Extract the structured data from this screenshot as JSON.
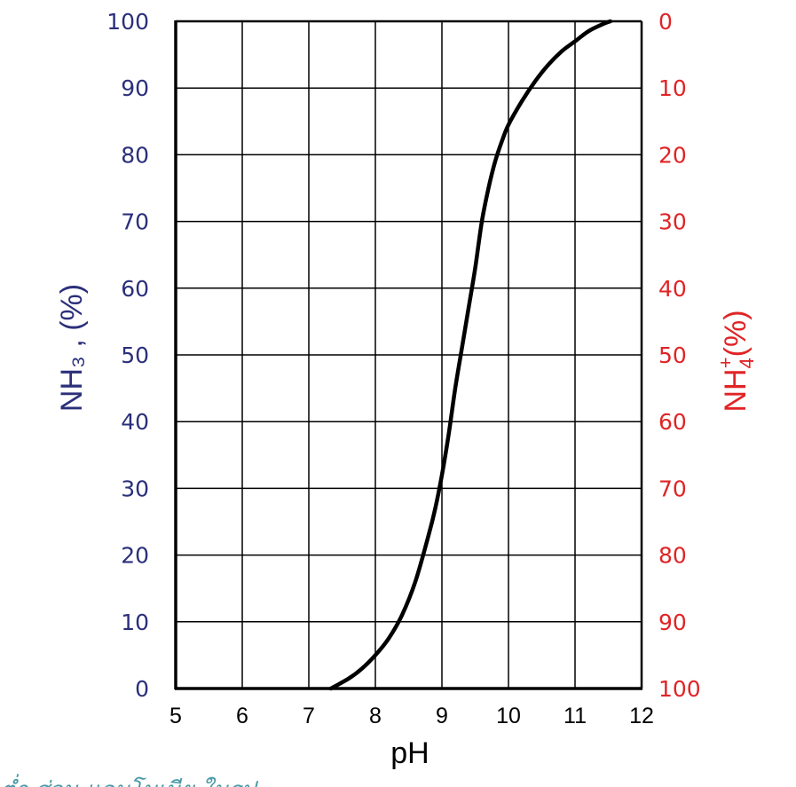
{
  "colors": {
    "left_axis": "#2b2f7a",
    "right_axis": "#e02426",
    "grid": "#000000",
    "curve": "#000000"
  },
  "chart_data": {
    "type": "line",
    "xlabel": "pH",
    "ylabel_left": "NH₃ , (%)",
    "ylabel_right": {
      "base": "NH",
      "subscript": "4",
      "superscript": "+",
      "suffix": "(%)"
    },
    "xlim": [
      5,
      12
    ],
    "ylim_left": [
      0,
      100
    ],
    "ylim_right": [
      100,
      0
    ],
    "x_ticks": [
      "5",
      "6",
      "7",
      "8",
      "9",
      "10",
      "11",
      "12"
    ],
    "left_ticks": [
      "0",
      "10",
      "20",
      "30",
      "40",
      "50",
      "60",
      "70",
      "80",
      "90",
      "100"
    ],
    "right_ticks": [
      "100",
      "90",
      "80",
      "70",
      "60",
      "50",
      "40",
      "30",
      "20",
      "10",
      "0"
    ],
    "grid": true,
    "series": [
      {
        "x": [
          7.33,
          7.6,
          7.8,
          8.0,
          8.2,
          8.4,
          8.6,
          8.8,
          8.9,
          9.0,
          9.1,
          9.2,
          9.3,
          9.4,
          9.5,
          9.6,
          9.7,
          9.8,
          9.9,
          10.0,
          10.2,
          10.4,
          10.6,
          10.8,
          11.0,
          11.2,
          11.4,
          11.53
        ],
        "y": [
          0,
          1.5,
          3,
          5,
          7.5,
          11,
          16,
          23,
          27,
          32,
          38,
          45,
          51,
          57,
          63,
          70,
          75,
          79,
          82,
          84.5,
          88,
          91,
          93.5,
          95.5,
          97,
          98.5,
          99.5,
          100
        ]
      }
    ]
  },
  "caption_text": "ต่ำ ส่วน แอมโมเนีย ในรูป"
}
